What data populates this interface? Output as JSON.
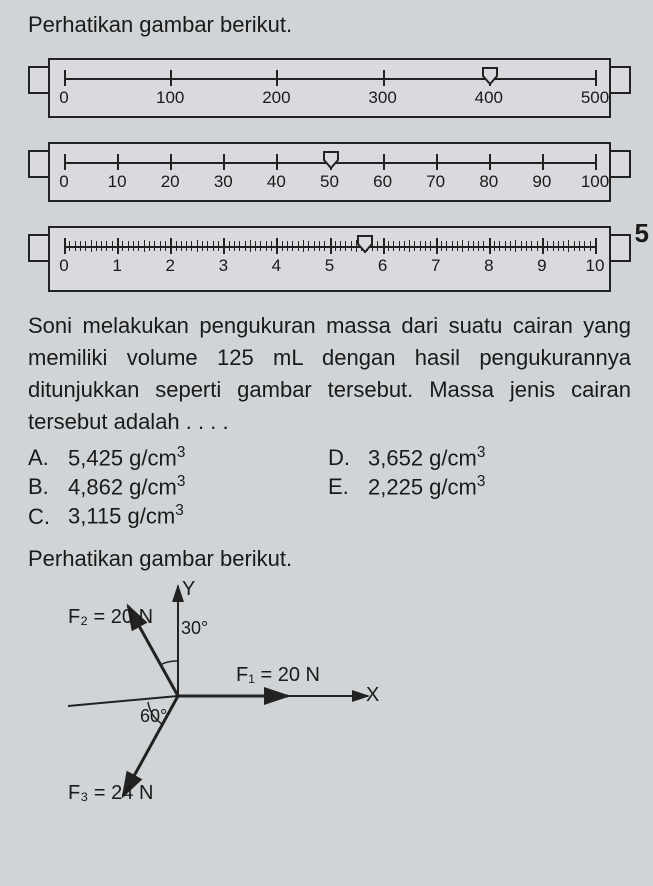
{
  "intro": "Perhatikan gambar berikut.",
  "ruler1": {
    "labels": [
      "0",
      "100",
      "200",
      "300",
      "400",
      "500"
    ],
    "positions_pct": [
      0,
      20,
      40,
      60,
      80,
      100
    ],
    "pointer_pct": 80
  },
  "ruler2": {
    "labels": [
      "0",
      "10",
      "20",
      "30",
      "40",
      "50",
      "60",
      "70",
      "80",
      "90",
      "100"
    ],
    "positions_pct": [
      0,
      10,
      20,
      30,
      40,
      50,
      60,
      70,
      80,
      90,
      100
    ],
    "pointer_pct": 50
  },
  "ruler3": {
    "major_labels": [
      "0",
      "1",
      "2",
      "3",
      "4",
      "5",
      "6",
      "7",
      "8",
      "9",
      "10"
    ],
    "major_positions_pct": [
      0,
      10,
      20,
      30,
      40,
      50,
      60,
      70,
      80,
      90,
      100
    ],
    "pointer_pct": 56.5
  },
  "question": "Soni melakukan pengukuran massa dari suatu cairan yang memiliki volume 125 mL dengan hasil pengukurannya ditunjukkan seperti gambar tersebut. Massa jenis cairan tersebut adalah . . . .",
  "options": {
    "A": "5,425 g/cm",
    "B": "4,862 g/cm",
    "C": "3,115 g/cm",
    "D": "3,652 g/cm",
    "E": "2,225 g/cm"
  },
  "exp": "3",
  "sec2_intro": "Perhatikan gambar berikut.",
  "vectors": {
    "Y": "Y",
    "X": "X",
    "F1": "F₁ = 20 N",
    "F2": "F₂ = 20 N",
    "F3": "F₃ = 24 N",
    "ang30": "30°",
    "ang60": "60°"
  },
  "partial": "5",
  "colors": {
    "stroke": "#222222",
    "bg": "#d0d4d6"
  }
}
